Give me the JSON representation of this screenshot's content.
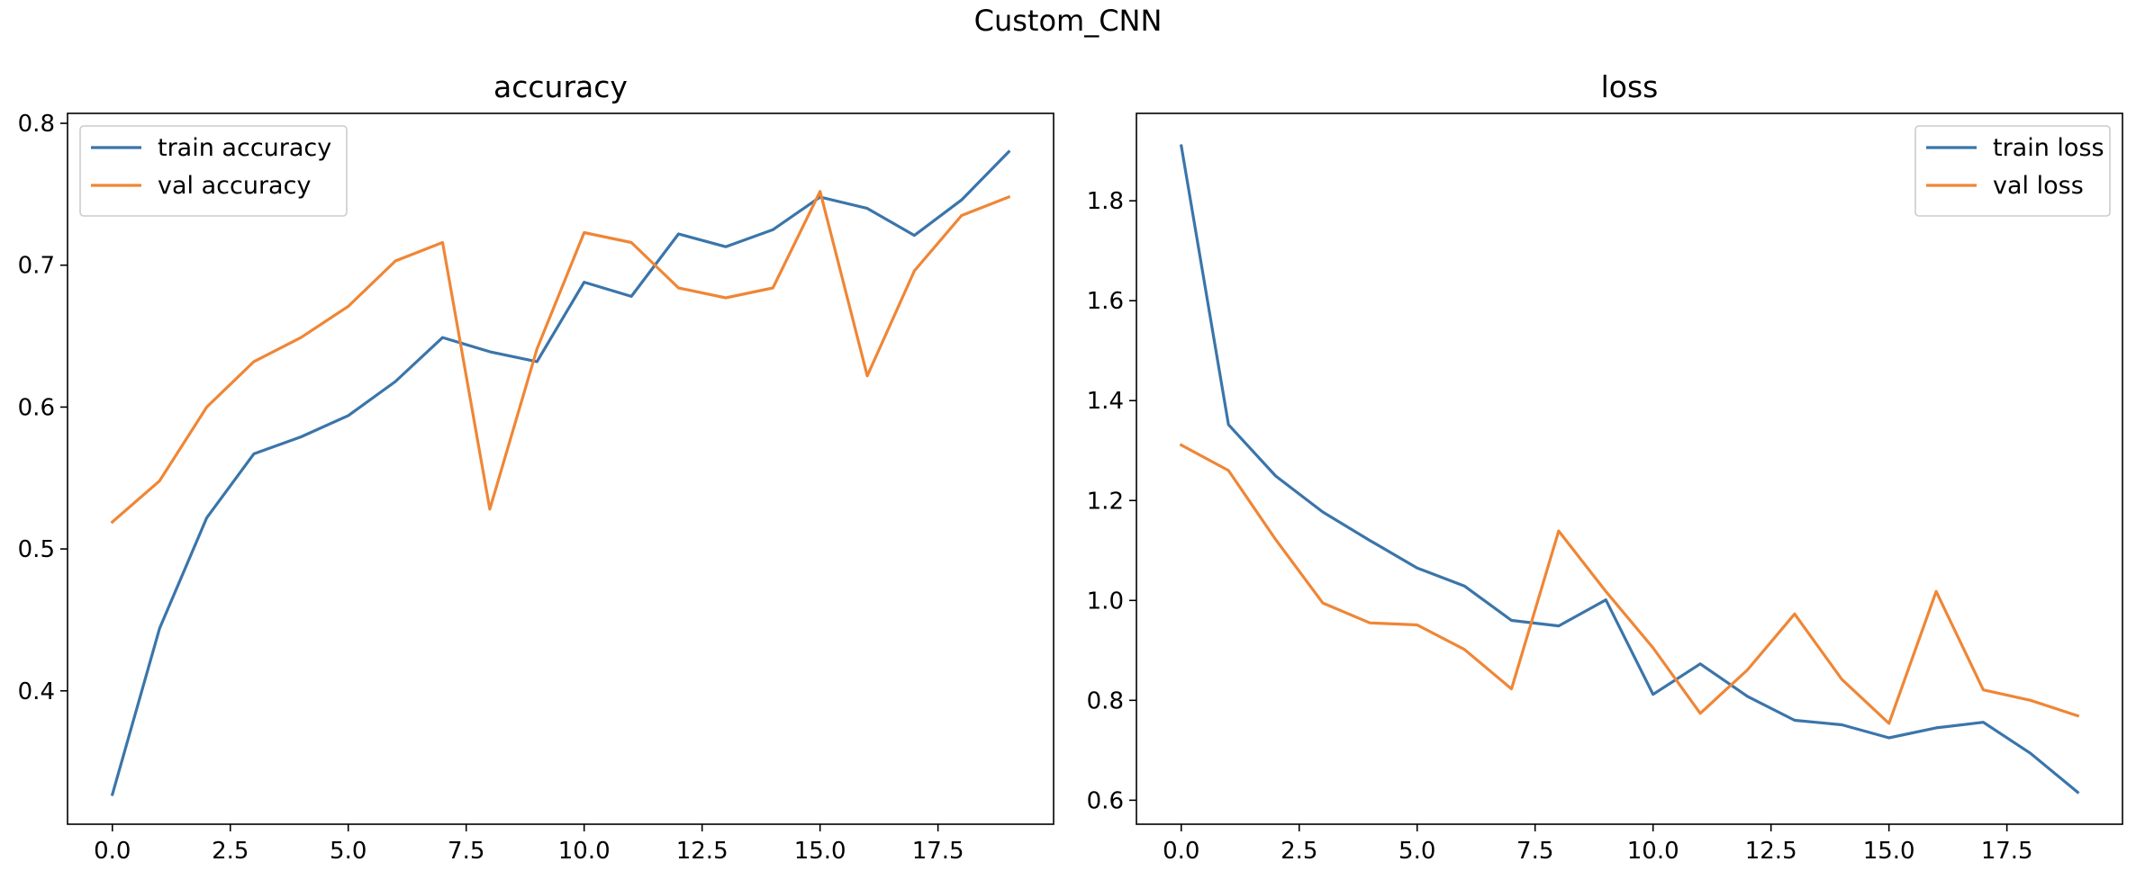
{
  "figure": {
    "suptitle": "Custom_CNN"
  },
  "colors": {
    "train": "#3a75aa",
    "val": "#ef8636",
    "axes": "#000000",
    "background": "#ffffff",
    "legend_border": "#cccccc"
  },
  "chart_data": [
    {
      "type": "line",
      "title": "accuracy",
      "xlabel": "",
      "ylabel": "",
      "grid": false,
      "legend_position": "upper-left",
      "xlim": [
        -0.95,
        19.95
      ],
      "ylim": [
        0.306,
        0.807
      ],
      "xticks": [
        0.0,
        2.5,
        5.0,
        7.5,
        10.0,
        12.5,
        15.0,
        17.5
      ],
      "xtick_labels": [
        "0.0",
        "2.5",
        "5.0",
        "7.5",
        "10.0",
        "12.5",
        "15.0",
        "17.5"
      ],
      "yticks": [
        0.4,
        0.5,
        0.6,
        0.7,
        0.8
      ],
      "ytick_labels": [
        "0.4",
        "0.5",
        "0.6",
        "0.7",
        "0.8"
      ],
      "x": [
        0,
        1,
        2,
        3,
        4,
        5,
        6,
        7,
        8,
        9,
        10,
        11,
        12,
        13,
        14,
        15,
        16,
        17,
        18,
        19
      ],
      "series": [
        {
          "name": "train accuracy",
          "color": "train",
          "values": [
            0.327,
            0.444,
            0.522,
            0.567,
            0.579,
            0.594,
            0.618,
            0.649,
            0.639,
            0.632,
            0.688,
            0.678,
            0.722,
            0.713,
            0.725,
            0.748,
            0.74,
            0.721,
            0.746,
            0.78
          ]
        },
        {
          "name": "val accuracy",
          "color": "val",
          "values": [
            0.519,
            0.548,
            0.6,
            0.632,
            0.649,
            0.671,
            0.703,
            0.716,
            0.528,
            0.641,
            0.723,
            0.716,
            0.684,
            0.677,
            0.684,
            0.752,
            0.622,
            0.696,
            0.735,
            0.748
          ]
        }
      ]
    },
    {
      "type": "line",
      "title": "loss",
      "xlabel": "",
      "ylabel": "",
      "grid": false,
      "legend_position": "upper-right",
      "xlim": [
        -0.95,
        19.95
      ],
      "ylim": [
        0.552,
        1.975
      ],
      "xticks": [
        0.0,
        2.5,
        5.0,
        7.5,
        10.0,
        12.5,
        15.0,
        17.5
      ],
      "xtick_labels": [
        "0.0",
        "2.5",
        "5.0",
        "7.5",
        "10.0",
        "12.5",
        "15.0",
        "17.5"
      ],
      "yticks": [
        0.6,
        0.8,
        1.0,
        1.2,
        1.4,
        1.6,
        1.8
      ],
      "ytick_labels": [
        "0.6",
        "0.8",
        "1.0",
        "1.2",
        "1.4",
        "1.6",
        "1.8"
      ],
      "x": [
        0,
        1,
        2,
        3,
        4,
        5,
        6,
        7,
        8,
        9,
        10,
        11,
        12,
        13,
        14,
        15,
        16,
        17,
        18,
        19
      ],
      "series": [
        {
          "name": "train loss",
          "color": "train",
          "values": [
            1.91,
            1.352,
            1.249,
            1.177,
            1.12,
            1.065,
            1.029,
            0.96,
            0.949,
            1.001,
            0.812,
            0.873,
            0.808,
            0.76,
            0.751,
            0.725,
            0.745,
            0.756,
            0.694,
            0.616
          ]
        },
        {
          "name": "val loss",
          "color": "val",
          "values": [
            1.311,
            1.26,
            1.122,
            0.995,
            0.955,
            0.951,
            0.902,
            0.823,
            1.139,
            1.018,
            0.905,
            0.774,
            0.861,
            0.973,
            0.842,
            0.754,
            1.018,
            0.821,
            0.8,
            0.769
          ]
        }
      ]
    }
  ]
}
